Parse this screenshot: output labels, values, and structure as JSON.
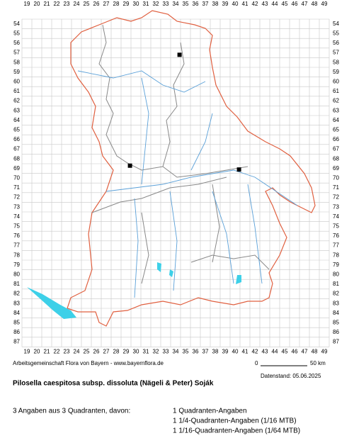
{
  "grid": {
    "columns": [
      19,
      20,
      21,
      22,
      23,
      24,
      25,
      26,
      27,
      28,
      29,
      30,
      31,
      32,
      33,
      34,
      35,
      36,
      37,
      38,
      39,
      40,
      41,
      42,
      43,
      44,
      45,
      46,
      47,
      48,
      49
    ],
    "rows": [
      54,
      55,
      56,
      57,
      58,
      59,
      60,
      61,
      62,
      63,
      64,
      65,
      66,
      67,
      68,
      69,
      70,
      71,
      72,
      73,
      74,
      75,
      76,
      77,
      78,
      79,
      80,
      81,
      82,
      83,
      84,
      85,
      86,
      87
    ]
  },
  "points": [
    {
      "col": 34.9,
      "row": 57.7
    },
    {
      "col": 29.9,
      "row": 69.2
    },
    {
      "col": 40.9,
      "row": 69.6
    }
  ],
  "credit": "Arbeitsgemeinschaft Flora von Bayern - www.bayernflora.de",
  "scale": {
    "start": "0",
    "end": "50 km"
  },
  "date": "Datenstand: 05.06.2025",
  "title": "Pilosella caespitosa subsp. dissoluta (Nägeli & Peter) Soják",
  "summary": "3 Angaben aus 3 Quadranten, davon:",
  "counts": [
    "1 Quadranten-Angaben",
    "1 1/4-Quadranten-Angaben (1/16 MTB)",
    "1 1/16-Quadranten-Angaben (1/64 MTB)"
  ]
}
